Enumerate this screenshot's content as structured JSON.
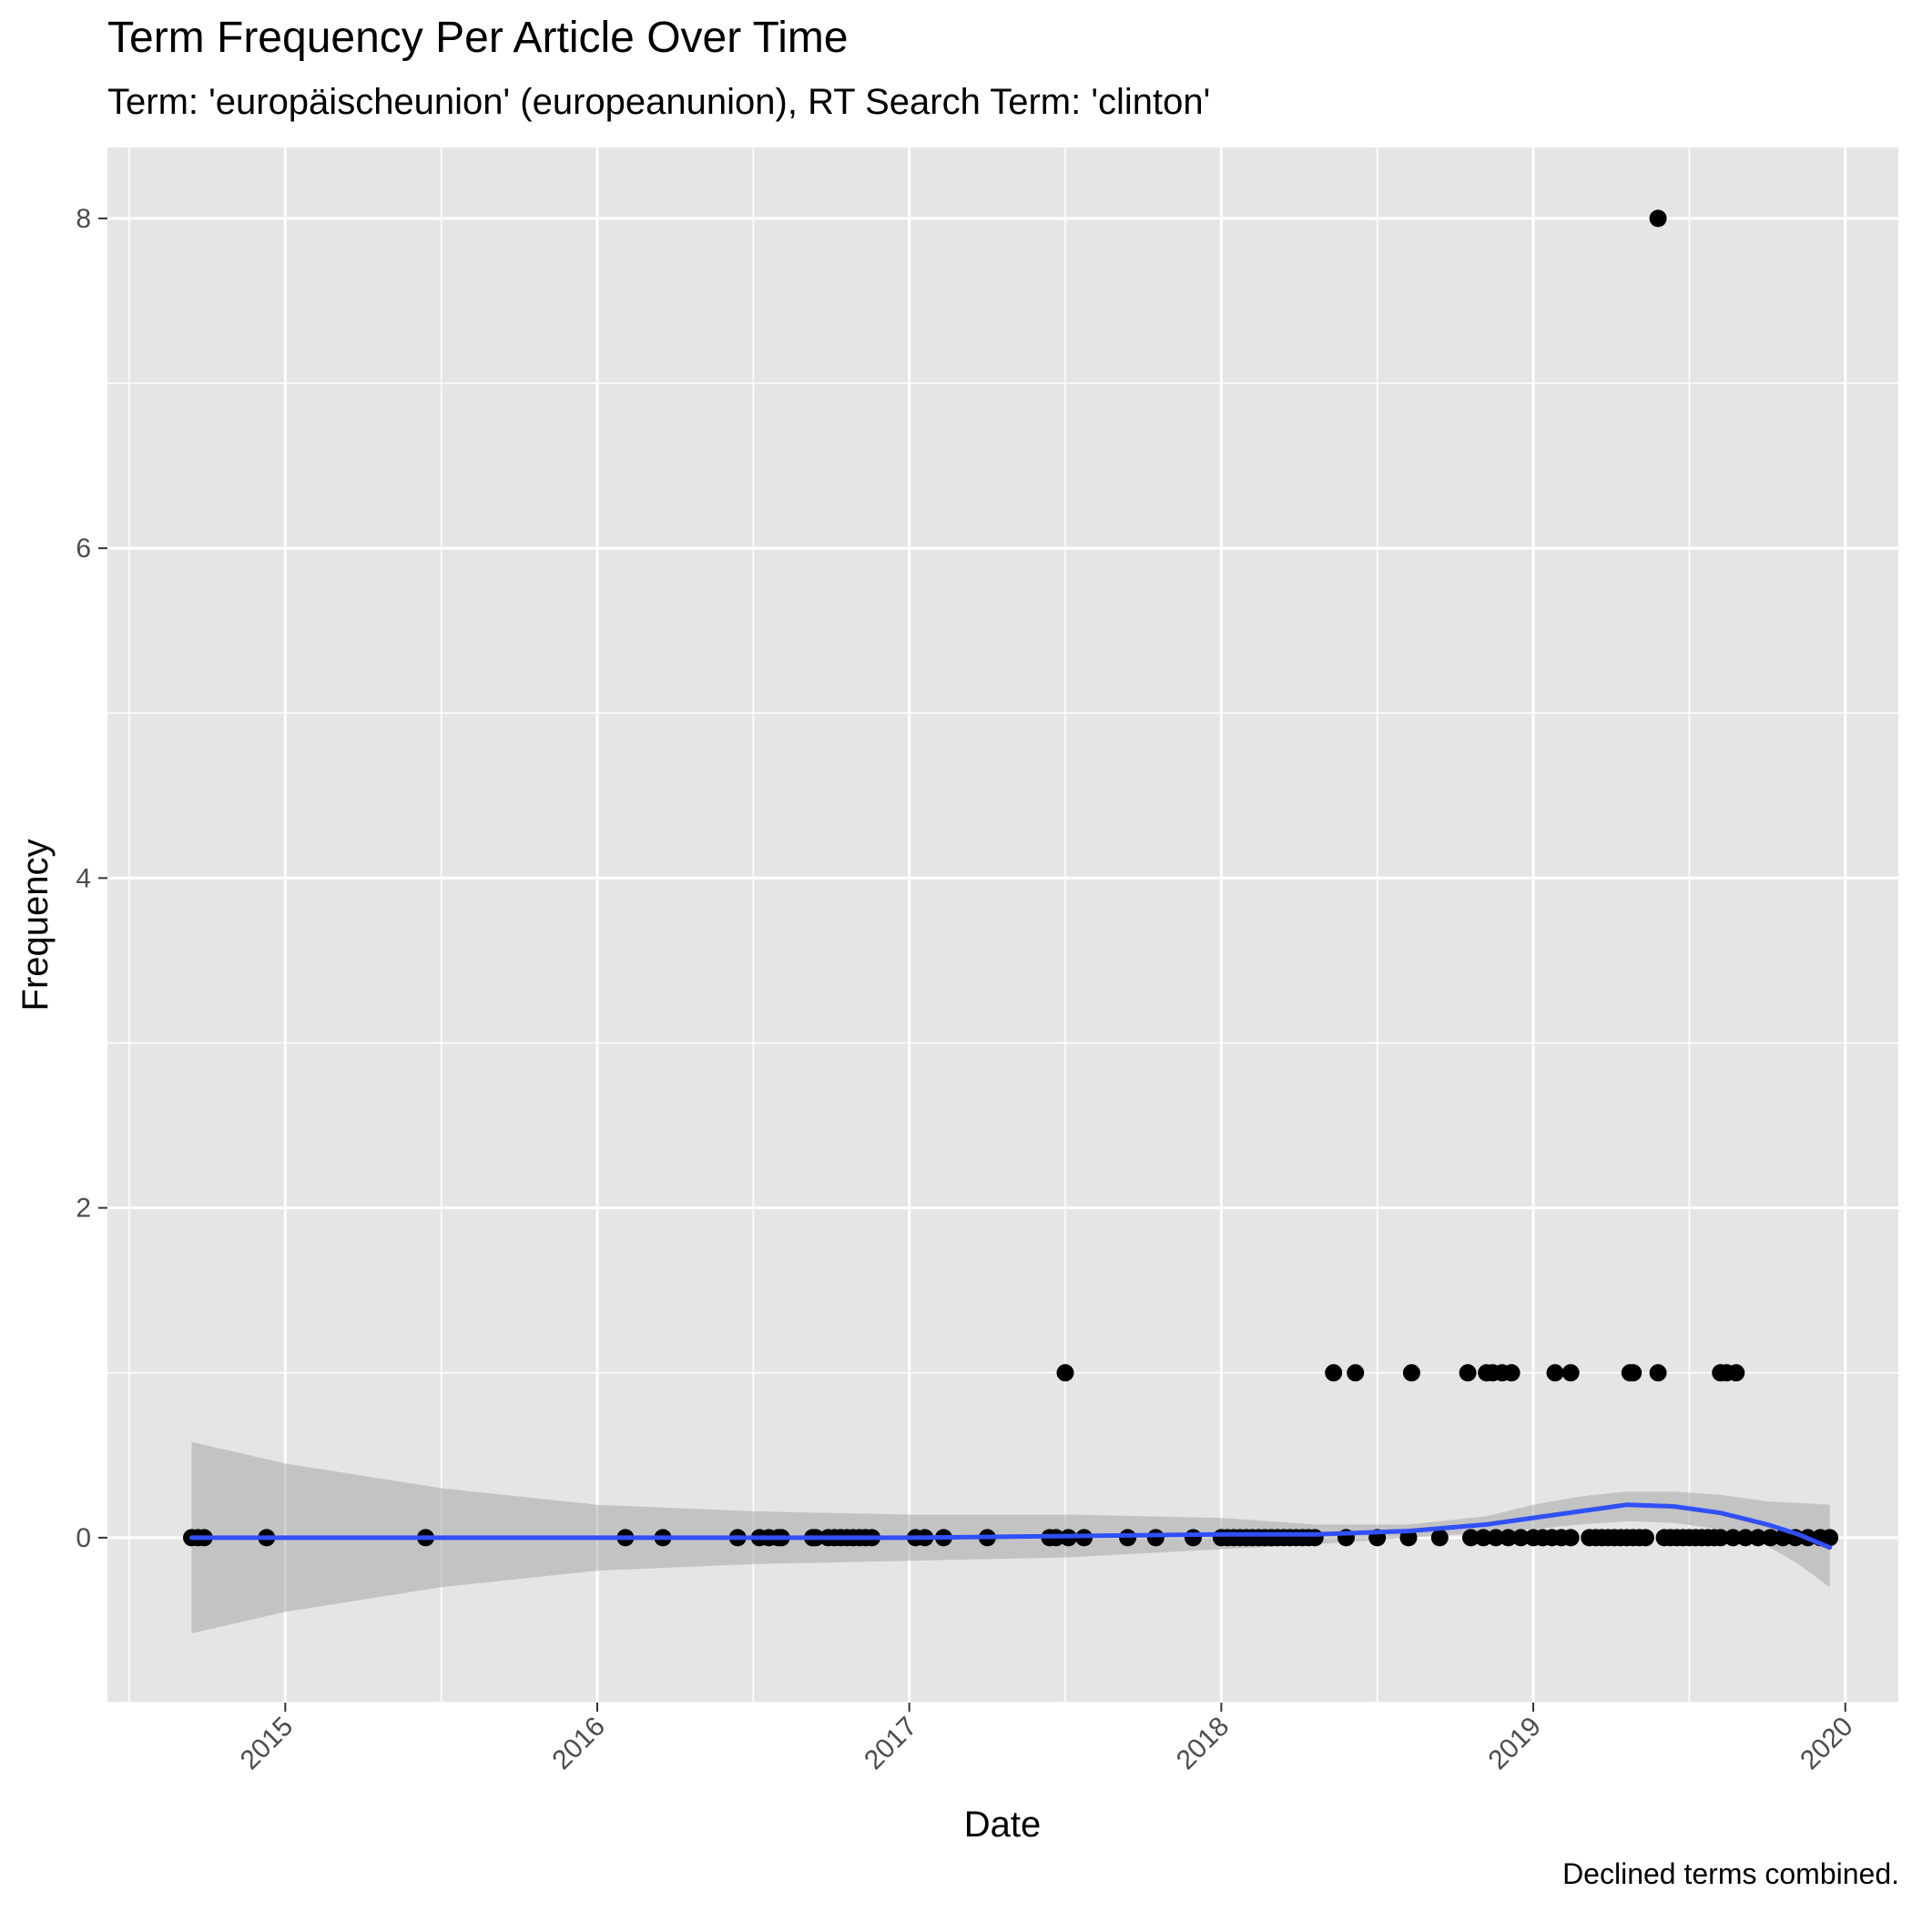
{
  "chart_data": {
    "type": "scatter",
    "title": "Term Frequency Per Article Over Time",
    "subtitle": "Term: 'europäischeunion' (europeanunion), RT Search Term: 'clinton'",
    "caption": "Declined terms combined.",
    "xlabel": "Date",
    "ylabel": "Frequency",
    "xlim": [
      2014.43,
      2020.17
    ],
    "ylim": [
      -1.0,
      8.43
    ],
    "x_ticks": [
      "2015",
      "2016",
      "2017",
      "2018",
      "2019",
      "2020"
    ],
    "y_ticks": [
      "0",
      "2",
      "4",
      "6",
      "8"
    ],
    "grid": true,
    "legend": "none",
    "colors": {
      "panel_background": "#e5e5e5",
      "grid": "#ffffff",
      "points": "#000000",
      "smooth_line": "#3050f8",
      "confidence_band": "#999999"
    },
    "series": [
      {
        "values": [
          [
            2014.7,
            0
          ],
          [
            2014.72,
            0
          ],
          [
            2014.74,
            0
          ],
          [
            2014.94,
            0
          ],
          [
            2015.45,
            0
          ],
          [
            2016.09,
            0
          ],
          [
            2016.21,
            0
          ],
          [
            2016.45,
            0
          ],
          [
            2016.52,
            0
          ],
          [
            2016.55,
            0
          ],
          [
            2016.58,
            0
          ],
          [
            2016.59,
            0
          ],
          [
            2016.69,
            0
          ],
          [
            2016.7,
            0
          ],
          [
            2016.74,
            0
          ],
          [
            2016.76,
            0
          ],
          [
            2016.78,
            0
          ],
          [
            2016.8,
            0
          ],
          [
            2016.82,
            0
          ],
          [
            2016.84,
            0
          ],
          [
            2016.86,
            0
          ],
          [
            2016.88,
            0
          ],
          [
            2017.02,
            0
          ],
          [
            2017.05,
            0
          ],
          [
            2017.11,
            0
          ],
          [
            2017.25,
            0
          ],
          [
            2017.45,
            0
          ],
          [
            2017.47,
            0
          ],
          [
            2017.5,
            1
          ],
          [
            2017.51,
            0
          ],
          [
            2017.56,
            0
          ],
          [
            2017.7,
            0
          ],
          [
            2017.79,
            0
          ],
          [
            2017.91,
            0
          ],
          [
            2018.0,
            0
          ],
          [
            2018.02,
            0
          ],
          [
            2018.04,
            0
          ],
          [
            2018.06,
            0
          ],
          [
            2018.08,
            0
          ],
          [
            2018.1,
            0
          ],
          [
            2018.12,
            0
          ],
          [
            2018.14,
            0
          ],
          [
            2018.16,
            0
          ],
          [
            2018.18,
            0
          ],
          [
            2018.2,
            0
          ],
          [
            2018.22,
            0
          ],
          [
            2018.24,
            0
          ],
          [
            2018.26,
            0
          ],
          [
            2018.28,
            0
          ],
          [
            2018.3,
            0
          ],
          [
            2018.36,
            1
          ],
          [
            2018.43,
            1
          ],
          [
            2018.61,
            1
          ],
          [
            2018.79,
            1
          ],
          [
            2018.85,
            1
          ],
          [
            2018.87,
            1
          ],
          [
            2018.9,
            1
          ],
          [
            2018.93,
            1
          ],
          [
            2018.4,
            0
          ],
          [
            2018.5,
            0
          ],
          [
            2018.6,
            0
          ],
          [
            2018.7,
            0
          ],
          [
            2018.8,
            0
          ],
          [
            2018.84,
            0
          ],
          [
            2018.88,
            0
          ],
          [
            2018.92,
            0
          ],
          [
            2018.96,
            0
          ],
          [
            2019.0,
            0
          ],
          [
            2019.03,
            0
          ],
          [
            2019.06,
            0
          ],
          [
            2019.09,
            0
          ],
          [
            2019.12,
            0
          ],
          [
            2019.07,
            1
          ],
          [
            2019.12,
            1
          ],
          [
            2019.18,
            0
          ],
          [
            2019.2,
            0
          ],
          [
            2019.22,
            0
          ],
          [
            2019.24,
            0
          ],
          [
            2019.26,
            0
          ],
          [
            2019.28,
            0
          ],
          [
            2019.3,
            0
          ],
          [
            2019.32,
            0
          ],
          [
            2019.34,
            0
          ],
          [
            2019.36,
            0
          ],
          [
            2019.31,
            1
          ],
          [
            2019.32,
            1
          ],
          [
            2019.4,
            1
          ],
          [
            2019.4,
            8
          ],
          [
            2019.42,
            0
          ],
          [
            2019.44,
            0
          ],
          [
            2019.46,
            0
          ],
          [
            2019.48,
            0
          ],
          [
            2019.5,
            0
          ],
          [
            2019.52,
            0
          ],
          [
            2019.54,
            0
          ],
          [
            2019.56,
            0
          ],
          [
            2019.58,
            0
          ],
          [
            2019.6,
            1
          ],
          [
            2019.62,
            1
          ],
          [
            2019.65,
            1
          ],
          [
            2019.6,
            0
          ],
          [
            2019.64,
            0
          ],
          [
            2019.68,
            0
          ],
          [
            2019.72,
            0
          ],
          [
            2019.76,
            0
          ],
          [
            2019.8,
            0
          ],
          [
            2019.84,
            0
          ],
          [
            2019.88,
            0
          ],
          [
            2019.92,
            0
          ],
          [
            2019.95,
            0
          ]
        ]
      }
    ],
    "smooth": {
      "x": [
        2014.7,
        2015.0,
        2015.5,
        2016.0,
        2016.5,
        2017.0,
        2017.5,
        2018.0,
        2018.3,
        2018.6,
        2018.85,
        2019.0,
        2019.15,
        2019.3,
        2019.45,
        2019.6,
        2019.75,
        2019.85,
        2019.95
      ],
      "y": [
        0,
        0,
        0,
        0,
        0,
        0,
        0.01,
        0.02,
        0.02,
        0.04,
        0.08,
        0.12,
        0.16,
        0.2,
        0.19,
        0.15,
        0.08,
        0.02,
        -0.06
      ],
      "upper": [
        0.58,
        0.45,
        0.3,
        0.2,
        0.16,
        0.14,
        0.14,
        0.12,
        0.08,
        0.08,
        0.13,
        0.2,
        0.25,
        0.28,
        0.28,
        0.26,
        0.22,
        0.21,
        0.2
      ],
      "lower": [
        -0.58,
        -0.45,
        -0.3,
        -0.2,
        -0.16,
        -0.14,
        -0.12,
        -0.07,
        -0.04,
        0.0,
        0.03,
        0.05,
        0.08,
        0.1,
        0.09,
        0.05,
        -0.05,
        -0.16,
        -0.3
      ]
    }
  }
}
